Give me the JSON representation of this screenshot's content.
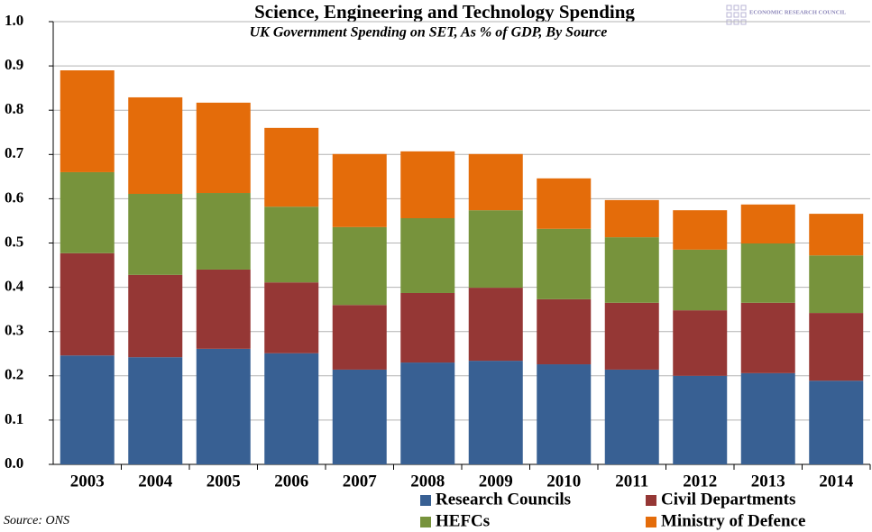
{
  "chart_data": {
    "type": "stacked_bar",
    "title": "Science, Engineering and Technology Spending",
    "subtitle": "UK Government Spending on SET, As % of GDP, By Source",
    "source": "Source: ONS",
    "brand": "ECONOMIC RESEARCH COUNCIL",
    "categories": [
      "2003",
      "2004",
      "2005",
      "2006",
      "2007",
      "2008",
      "2009",
      "2010",
      "2011",
      "2012",
      "2013",
      "2014"
    ],
    "series": [
      {
        "name": "Research Councils",
        "color": "#386093",
        "values": [
          0.246,
          0.242,
          0.261,
          0.251,
          0.214,
          0.23,
          0.234,
          0.226,
          0.214,
          0.2,
          0.206,
          0.189
        ]
      },
      {
        "name": "Civil Departments",
        "color": "#953735",
        "values": [
          0.231,
          0.186,
          0.179,
          0.16,
          0.146,
          0.157,
          0.165,
          0.147,
          0.151,
          0.148,
          0.159,
          0.153
        ]
      },
      {
        "name": "HEFCs",
        "color": "#77933c",
        "values": [
          0.183,
          0.183,
          0.173,
          0.171,
          0.176,
          0.169,
          0.175,
          0.159,
          0.148,
          0.137,
          0.134,
          0.13
        ]
      },
      {
        "name": "Ministry of Defence",
        "color": "#e46c0a",
        "values": [
          0.23,
          0.218,
          0.204,
          0.178,
          0.165,
          0.151,
          0.127,
          0.114,
          0.084,
          0.089,
          0.088,
          0.094
        ]
      }
    ],
    "ylim": [
      0,
      1.0
    ],
    "yticks": [
      {
        "value": 0,
        "label": "0.0"
      },
      0.1,
      0.2,
      0.3,
      0.4,
      0.5,
      0.6,
      0.7,
      0.8,
      0.9,
      {
        "value": 1.0,
        "label": "1.0"
      }
    ],
    "grid": true
  }
}
